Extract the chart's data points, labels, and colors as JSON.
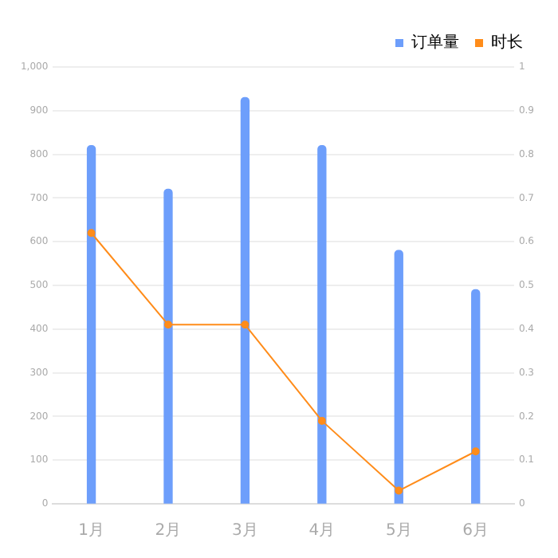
{
  "chart_data": {
    "type": "bar",
    "categories": [
      "1月",
      "2月",
      "3月",
      "4月",
      "5月",
      "6月"
    ],
    "series": [
      {
        "name": "订单量",
        "color": "#6d9efb",
        "values": [
          820,
          720,
          930,
          820,
          580,
          490
        ]
      },
      {
        "name": "时长",
        "type": "line",
        "axis": "y2",
        "color": "#ff8c1a",
        "values": [
          0.62,
          0.41,
          0.41,
          0.19,
          0.03,
          0.12
        ]
      }
    ],
    "ylim": [
      0,
      1000
    ],
    "yticks": [
      0,
      100,
      200,
      300,
      400,
      500,
      600,
      700,
      800,
      900,
      {
        "value": 1000,
        "label": "1,000"
      }
    ],
    "y2lim": [
      0,
      1
    ],
    "y2ticks": [
      0,
      0.1,
      0.2,
      0.3,
      0.4,
      0.5,
      0.6,
      0.7,
      0.8,
      0.9,
      1
    ],
    "grid": "y",
    "legend": "top right",
    "marker": "circle"
  }
}
